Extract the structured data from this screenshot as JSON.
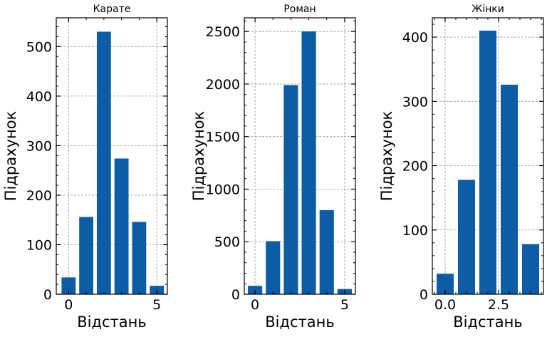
{
  "chart_data": [
    {
      "type": "bar",
      "title": "Карате",
      "xlabel": "Відстань",
      "ylabel": "Підрахунок",
      "x": [
        0,
        1,
        2,
        3,
        4,
        5
      ],
      "values": [
        34,
        156,
        530,
        274,
        146,
        17
      ],
      "xlim": [
        -0.7,
        5.6
      ],
      "ylim": [
        0,
        558
      ],
      "xticks": [
        0,
        5
      ],
      "xtick_labels": [
        "0",
        "5"
      ],
      "yticks": [
        0,
        100,
        200,
        300,
        400,
        500
      ],
      "ytick_labels": [
        "0",
        "100",
        "200",
        "300",
        "400",
        "500"
      ],
      "grid": true,
      "color": "#0c5da5"
    },
    {
      "type": "bar",
      "title": "Роман",
      "xlabel": "Відстань",
      "ylabel": "Підрахунок",
      "x": [
        0,
        1,
        2,
        3,
        4,
        5
      ],
      "values": [
        80,
        505,
        1990,
        2500,
        800,
        50
      ],
      "xlim": [
        -0.6,
        5.6
      ],
      "ylim": [
        0,
        2630
      ],
      "xticks": [
        0,
        5
      ],
      "xtick_labels": [
        "0",
        "5"
      ],
      "yticks": [
        0,
        500,
        1000,
        1500,
        2000,
        2500
      ],
      "ytick_labels": [
        "0",
        "500",
        "1000",
        "1500",
        "2000",
        "2500"
      ],
      "grid": true,
      "color": "#0c5da5"
    },
    {
      "type": "bar",
      "title": "Жінки",
      "xlabel": "Відстань",
      "ylabel": "Підрахунок",
      "x": [
        0,
        1,
        2,
        3,
        4
      ],
      "values": [
        32,
        178,
        410,
        326,
        78
      ],
      "xlim": [
        -0.6,
        4.6
      ],
      "ylim": [
        0,
        430
      ],
      "xticks": [
        0,
        2.5
      ],
      "xtick_labels": [
        "0.0",
        "2.5"
      ],
      "yticks": [
        0,
        100,
        200,
        300,
        400
      ],
      "ytick_labels": [
        "0",
        "100",
        "200",
        "300",
        "400"
      ],
      "grid": true,
      "color": "#0c5da5"
    }
  ]
}
